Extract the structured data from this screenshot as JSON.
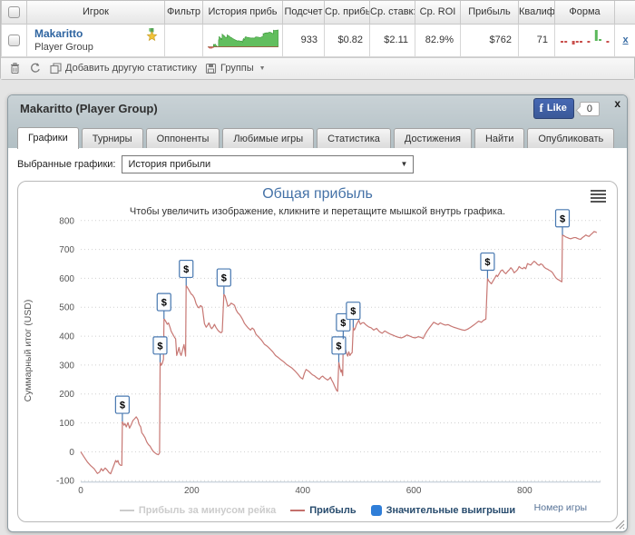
{
  "table": {
    "columns": [
      "",
      "Игрок",
      "Фильтр",
      "История прибь",
      "Подсчет",
      "Ср. прибь",
      "Ср. ставк:",
      "Ср. ROI",
      "Прибыль",
      "Квалиф",
      "Форма",
      ""
    ],
    "row": {
      "player": "Makaritto",
      "group": "Player Group",
      "count": "933",
      "avg_profit": "$0.82",
      "avg_stake": "$2.11",
      "avg_roi": "82.9%",
      "profit": "$762",
      "qualifying": "71",
      "remove_label": "x"
    },
    "form_bars": [
      -1,
      -1,
      0,
      -2,
      -1,
      -1,
      0,
      -1,
      0,
      6,
      1,
      0,
      -1
    ],
    "toolbar": {
      "add_label": "Добавить другую статистику",
      "groups_label": "Группы"
    }
  },
  "panel": {
    "title": "Makaritto (Player Group)",
    "close_label": "x",
    "fb_like_label": "Like",
    "fb_like_count": "0",
    "tabs": [
      "Графики",
      "Турниры",
      "Оппоненты",
      "Любимые игры",
      "Статистика",
      "Достижения",
      "Найти",
      "Опубликовать"
    ],
    "selector_label": "Выбранные графики:",
    "selector_value": "История прибыли"
  },
  "chart_data": {
    "type": "line",
    "title": "Общая прибыль",
    "subtitle": "Чтобы увеличить изображение, кликните и перетащите мышкой внутрь графика.",
    "xlabel": "Номер игры",
    "ylabel": "Суммарный итог (USD)",
    "xlim": [
      0,
      935
    ],
    "ylim": [
      -100,
      800
    ],
    "x_ticks": [
      0,
      200,
      400,
      600,
      800
    ],
    "y_ticks": [
      -100,
      0,
      100,
      200,
      300,
      400,
      500,
      600,
      700,
      800
    ],
    "grid": "dotted",
    "legend_position": "bottom",
    "series": [
      {
        "name": "Прибыль за минусом рейка",
        "color": "#cccccc",
        "enabled": false,
        "points": []
      },
      {
        "name": "Прибыль",
        "color": "#c4706c",
        "enabled": true,
        "points": [
          [
            0,
            0
          ],
          [
            6,
            -18
          ],
          [
            12,
            -35
          ],
          [
            18,
            -48
          ],
          [
            24,
            -58
          ],
          [
            30,
            -75
          ],
          [
            34,
            -70
          ],
          [
            37,
            -58
          ],
          [
            40,
            -66
          ],
          [
            44,
            -56
          ],
          [
            47,
            -62
          ],
          [
            51,
            -72
          ],
          [
            54,
            -76
          ],
          [
            57,
            -60
          ],
          [
            60,
            -45
          ],
          [
            63,
            -30
          ],
          [
            65,
            -36
          ],
          [
            67,
            -30
          ],
          [
            69,
            -42
          ],
          [
            72,
            -47
          ],
          [
            74,
            -47
          ],
          [
            75,
            105
          ],
          [
            78,
            92
          ],
          [
            80,
            97
          ],
          [
            82,
            86
          ],
          [
            85,
            101
          ],
          [
            88,
            82
          ],
          [
            91,
            94
          ],
          [
            94,
            108
          ],
          [
            97,
            114
          ],
          [
            100,
            121
          ],
          [
            103,
            112
          ],
          [
            105,
            96
          ],
          [
            108,
            86
          ],
          [
            110,
            66
          ],
          [
            113,
            58
          ],
          [
            116,
            48
          ],
          [
            119,
            34
          ],
          [
            122,
            25
          ],
          [
            125,
            19
          ],
          [
            128,
            9
          ],
          [
            131,
            1
          ],
          [
            134,
            -4
          ],
          [
            137,
            -8
          ],
          [
            140,
            -10
          ],
          [
            142,
            -4
          ],
          [
            143,
            310
          ],
          [
            145,
            299
          ],
          [
            147,
            306
          ],
          [
            149,
            320
          ],
          [
            150,
            460
          ],
          [
            153,
            452
          ],
          [
            156,
            441
          ],
          [
            158,
            446
          ],
          [
            161,
            430
          ],
          [
            163,
            417
          ],
          [
            166,
            406
          ],
          [
            169,
            396
          ],
          [
            171,
            391
          ],
          [
            173,
            333
          ],
          [
            175,
            347
          ],
          [
            177,
            361
          ],
          [
            179,
            342
          ],
          [
            181,
            333
          ],
          [
            184,
            356
          ],
          [
            186,
            371
          ],
          [
            188,
            347
          ],
          [
            189,
            331
          ],
          [
            190,
            575
          ],
          [
            193,
            566
          ],
          [
            196,
            556
          ],
          [
            199,
            546
          ],
          [
            202,
            541
          ],
          [
            205,
            531
          ],
          [
            208,
            512
          ],
          [
            211,
            501
          ],
          [
            213,
            498
          ],
          [
            216,
            506
          ],
          [
            219,
            501
          ],
          [
            221,
            471
          ],
          [
            223,
            443
          ],
          [
            226,
            431
          ],
          [
            229,
            439
          ],
          [
            231,
            446
          ],
          [
            234,
            431
          ],
          [
            236,
            426
          ],
          [
            239,
            433
          ],
          [
            241,
            441
          ],
          [
            244,
            429
          ],
          [
            247,
            421
          ],
          [
            250,
            415
          ],
          [
            253,
            412
          ],
          [
            255,
            416
          ],
          [
            258,
            545
          ],
          [
            260,
            539
          ],
          [
            263,
            519
          ],
          [
            265,
            503
          ],
          [
            268,
            507
          ],
          [
            271,
            514
          ],
          [
            274,
            511
          ],
          [
            277,
            507
          ],
          [
            280,
            491
          ],
          [
            283,
            481
          ],
          [
            286,
            475
          ],
          [
            289,
            467
          ],
          [
            292,
            457
          ],
          [
            295,
            444
          ],
          [
            298,
            437
          ],
          [
            301,
            430
          ],
          [
            306,
            421
          ],
          [
            309,
            428
          ],
          [
            312,
            423
          ],
          [
            316,
            406
          ],
          [
            321,
            396
          ],
          [
            326,
            386
          ],
          [
            331,
            372
          ],
          [
            336,
            365
          ],
          [
            341,
            356
          ],
          [
            346,
            346
          ],
          [
            351,
            333
          ],
          [
            356,
            326
          ],
          [
            361,
            318
          ],
          [
            366,
            311
          ],
          [
            371,
            302
          ],
          [
            376,
            296
          ],
          [
            381,
            289
          ],
          [
            386,
            280
          ],
          [
            391,
            269
          ],
          [
            396,
            257
          ],
          [
            400,
            252
          ],
          [
            403,
            271
          ],
          [
            406,
            285
          ],
          [
            409,
            281
          ],
          [
            412,
            277
          ],
          [
            415,
            271
          ],
          [
            418,
            266
          ],
          [
            421,
            263
          ],
          [
            424,
            258
          ],
          [
            427,
            254
          ],
          [
            430,
            251
          ],
          [
            433,
            258
          ],
          [
            436,
            262
          ],
          [
            439,
            256
          ],
          [
            442,
            252
          ],
          [
            445,
            248
          ],
          [
            448,
            253
          ],
          [
            450,
            258
          ],
          [
            452,
            249
          ],
          [
            455,
            238
          ],
          [
            457,
            229
          ],
          [
            459,
            221
          ],
          [
            461,
            213
          ],
          [
            463,
            209
          ],
          [
            465,
            310
          ],
          [
            467,
            291
          ],
          [
            469,
            276
          ],
          [
            470,
            283
          ],
          [
            472,
            263
          ],
          [
            473,
            390
          ],
          [
            475,
            371
          ],
          [
            477,
            356
          ],
          [
            479,
            341
          ],
          [
            481,
            331
          ],
          [
            483,
            346
          ],
          [
            485,
            333
          ],
          [
            487,
            339
          ],
          [
            489,
            343
          ],
          [
            491,
            430
          ],
          [
            493,
            421
          ],
          [
            495,
            429
          ],
          [
            497,
            441
          ],
          [
            499,
            448
          ],
          [
            501,
            455
          ],
          [
            504,
            441
          ],
          [
            507,
            446
          ],
          [
            510,
            447
          ],
          [
            513,
            441
          ],
          [
            516,
            436
          ],
          [
            519,
            432
          ],
          [
            523,
            429
          ],
          [
            528,
            421
          ],
          [
            533,
            427
          ],
          [
            538,
            416
          ],
          [
            543,
            410
          ],
          [
            548,
            418
          ],
          [
            553,
            412
          ],
          [
            558,
            407
          ],
          [
            563,
            403
          ],
          [
            568,
            399
          ],
          [
            573,
            396
          ],
          [
            578,
            394
          ],
          [
            583,
            398
          ],
          [
            588,
            404
          ],
          [
            593,
            400
          ],
          [
            598,
            396
          ],
          [
            603,
            394
          ],
          [
            608,
            398
          ],
          [
            613,
            396
          ],
          [
            617,
            392
          ],
          [
            620,
            404
          ],
          [
            624,
            417
          ],
          [
            628,
            428
          ],
          [
            632,
            438
          ],
          [
            636,
            448
          ],
          [
            640,
            444
          ],
          [
            644,
            440
          ],
          [
            648,
            446
          ],
          [
            652,
            442
          ],
          [
            657,
            438
          ],
          [
            662,
            440
          ],
          [
            667,
            435
          ],
          [
            672,
            431
          ],
          [
            677,
            428
          ],
          [
            682,
            425
          ],
          [
            687,
            422
          ],
          [
            692,
            420
          ],
          [
            697,
            424
          ],
          [
            702,
            430
          ],
          [
            707,
            437
          ],
          [
            712,
            444
          ],
          [
            717,
            452
          ],
          [
            722,
            448
          ],
          [
            726,
            455
          ],
          [
            730,
            459
          ],
          [
            733,
            600
          ],
          [
            735,
            592
          ],
          [
            738,
            585
          ],
          [
            740,
            581
          ],
          [
            743,
            591
          ],
          [
            746,
            601
          ],
          [
            749,
            611
          ],
          [
            751,
            606
          ],
          [
            754,
            616
          ],
          [
            757,
            626
          ],
          [
            760,
            629
          ],
          [
            763,
            621
          ],
          [
            766,
            616
          ],
          [
            769,
            623
          ],
          [
            772,
            629
          ],
          [
            775,
            637
          ],
          [
            778,
            630
          ],
          [
            781,
            619
          ],
          [
            784,
            624
          ],
          [
            787,
            630
          ],
          [
            790,
            641
          ],
          [
            793,
            636
          ],
          [
            796,
            633
          ],
          [
            799,
            638
          ],
          [
            802,
            633
          ],
          [
            805,
            651
          ],
          [
            808,
            648
          ],
          [
            811,
            646
          ],
          [
            814,
            653
          ],
          [
            817,
            659
          ],
          [
            820,
            655
          ],
          [
            823,
            648
          ],
          [
            826,
            645
          ],
          [
            829,
            650
          ],
          [
            832,
            647
          ],
          [
            835,
            639
          ],
          [
            838,
            634
          ],
          [
            841,
            632
          ],
          [
            844,
            628
          ],
          [
            847,
            625
          ],
          [
            850,
            620
          ],
          [
            853,
            611
          ],
          [
            856,
            602
          ],
          [
            859,
            597
          ],
          [
            862,
            594
          ],
          [
            865,
            590
          ],
          [
            867,
            588
          ],
          [
            868,
            750
          ],
          [
            871,
            747
          ],
          [
            874,
            743
          ],
          [
            877,
            741
          ],
          [
            880,
            738
          ],
          [
            883,
            737
          ],
          [
            886,
            739
          ],
          [
            889,
            741
          ],
          [
            892,
            741
          ],
          [
            895,
            738
          ],
          [
            898,
            736
          ],
          [
            901,
            735
          ],
          [
            904,
            741
          ],
          [
            907,
            745
          ],
          [
            910,
            750
          ],
          [
            913,
            747
          ],
          [
            916,
            745
          ],
          [
            919,
            751
          ],
          [
            922,
            756
          ],
          [
            925,
            762
          ],
          [
            928,
            760
          ],
          [
            930,
            758
          ]
        ]
      },
      {
        "name": "Значительные выигрыши",
        "color": "#2f7ed8",
        "type": "flags",
        "symbol": "$",
        "points": [
          [
            75,
            105
          ],
          [
            143,
            310
          ],
          [
            150,
            460
          ],
          [
            190,
            575
          ],
          [
            258,
            545
          ],
          [
            465,
            310
          ],
          [
            473,
            390
          ],
          [
            491,
            430
          ],
          [
            733,
            600
          ],
          [
            868,
            750
          ]
        ]
      }
    ]
  }
}
